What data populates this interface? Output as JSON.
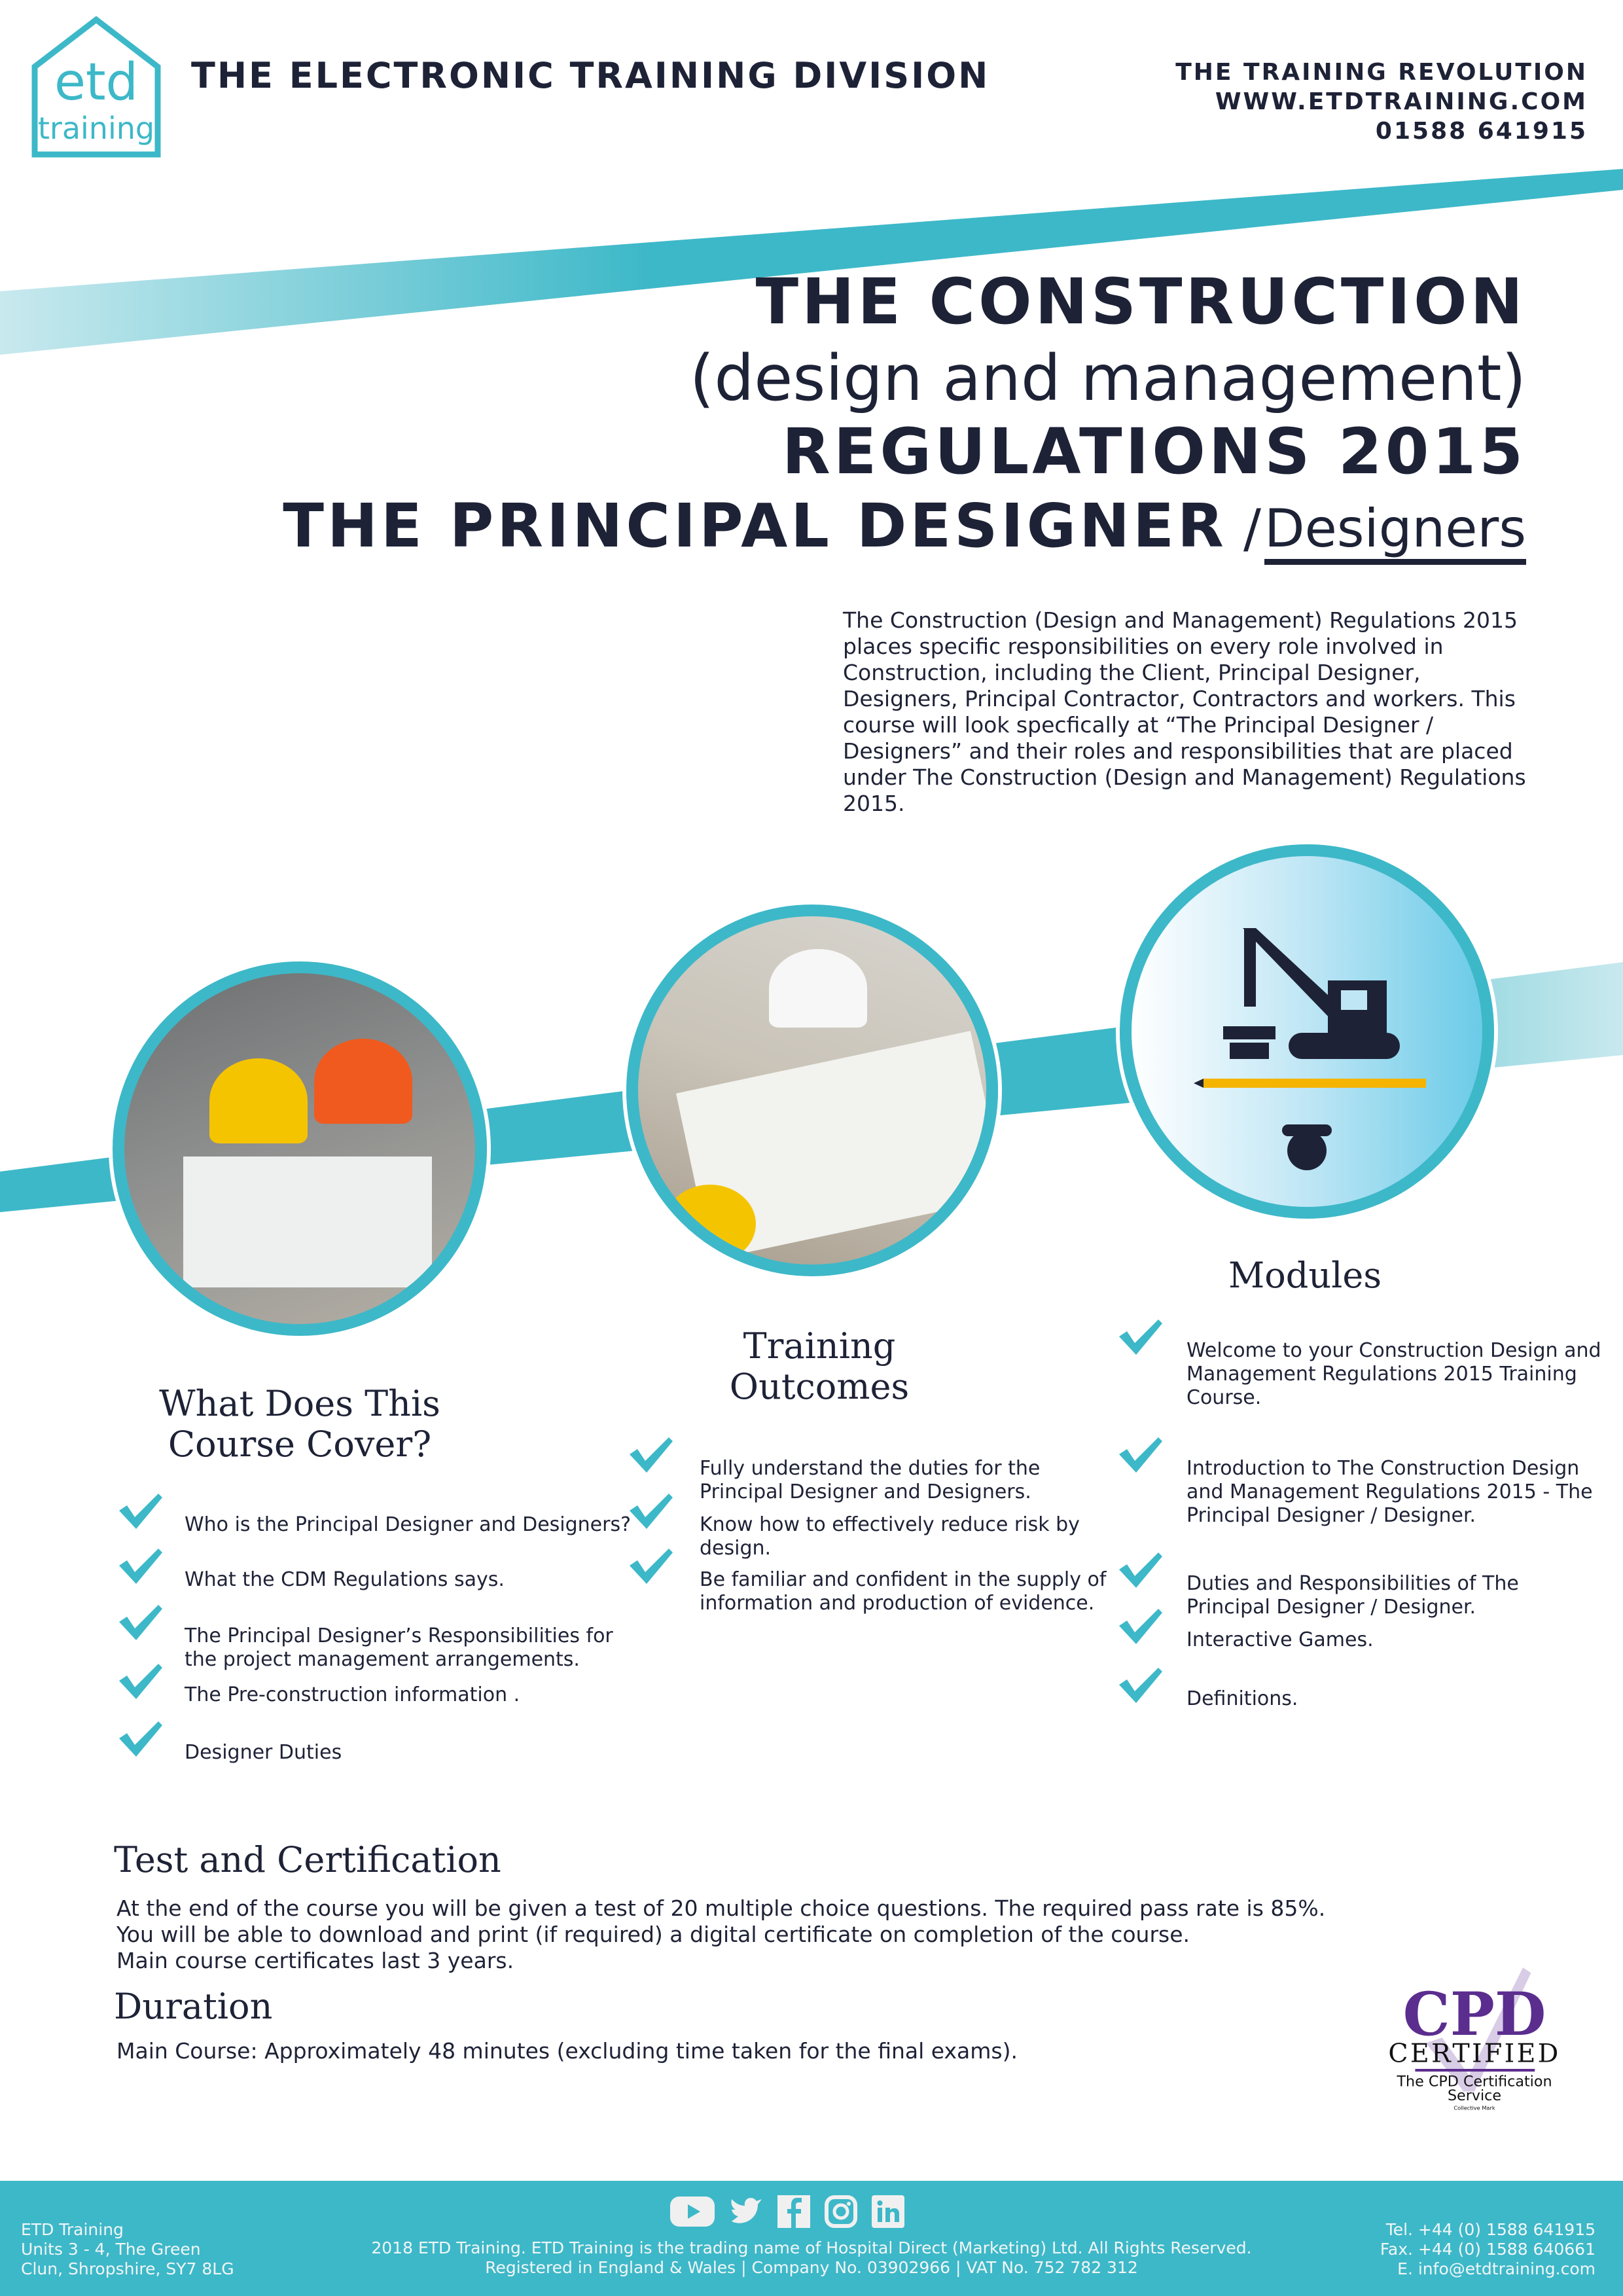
{
  "header": {
    "logo_top": "etd",
    "logo_bottom": "training",
    "division": "THE ELECTRONIC TRAINING DIVISION",
    "right": [
      "THE TRAINING REVOLUTION",
      "WWW.ETDTRAINING.COM",
      "01588 641915"
    ]
  },
  "title": {
    "line1": "THE CONSTRUCTION",
    "line2": "(design and management)",
    "line3": "REGULATIONS 2015",
    "line4_bold": "THE PRINCIPAL DESIGNER",
    "line4_sep": "/",
    "line4_light": "Designers"
  },
  "intro": "The Construction (Design and Management) Regulations 2015 places specific responsibilities on every role involved in Construction, including the Client, Principal Designer, Designers, Principal Contractor, Contractors and workers. This course will look specfically at “The Principal Designer / Designers” and their roles and responsibilities that are placed under The Construction (Design and Management) Regulations 2015.",
  "colors": {
    "teal": "#3db8c8",
    "navy": "#1e2236",
    "purple": "#5b2d8e"
  },
  "cover": {
    "heading": [
      "What Does This",
      "Course Cover?"
    ],
    "items": [
      "Who is the Principal Designer and Designers?",
      "What the CDM Regulations says.",
      "The Principal Designer’s Responsibilities for the project management arrangements.",
      "The Pre-construction information .",
      "Designer Duties"
    ]
  },
  "outcomes": {
    "heading": [
      "Training",
      "Outcomes"
    ],
    "items": [
      "Fully understand the duties for the Principal Designer and Designers.",
      "Know how to effectively reduce risk by design.",
      "Be familiar and confident in the supply of information and production of evidence."
    ]
  },
  "modules": {
    "heading": "Modules",
    "items": [
      "Welcome to your Construction Design and Management Regulations 2015 Training Course.",
      "Introduction to The Construction Design and Management Regulations 2015 - The Principal Designer / Designer.",
      "Duties and Responsibilities of The Principal Designer / Designer.",
      "Interactive Games.",
      "Definitions."
    ]
  },
  "test": {
    "heading": "Test and Certification",
    "lines": [
      "At the end of the course you will be given a test of 20 multiple choice questions. The required pass rate is 85%.",
      "You will be able to download and print (if required) a digital certificate on completion of the course.",
      "Main course certificates last 3 years."
    ]
  },
  "duration": {
    "heading": "Duration",
    "text": "Main Course: Approximately 48 minutes (excluding time taken for the final exams)."
  },
  "cpd": {
    "mark": "CPD",
    "certified": "CERTIFIED",
    "service": "The CPD Certification Service",
    "collective": "Collective Mark"
  },
  "footer": {
    "left": [
      "ETD Training",
      "Units 3 - 4, The Green",
      "Clun, Shropshire, SY7 8LG"
    ],
    "center": [
      "2018 ETD Training. ETD Training is the trading name of Hospital Direct (Marketing) Ltd. All Rights Reserved.",
      "Registered in England & Wales | Company No. 03902966 | VAT No. 752 782 312"
    ],
    "right": [
      "Tel. +44 (0) 1588 641915",
      "Fax. +44 (0) 1588 640661",
      "E. info@etdtraining.com"
    ],
    "social": [
      "youtube-icon",
      "twitter-icon",
      "facebook-icon",
      "instagram-icon",
      "linkedin-icon"
    ]
  }
}
